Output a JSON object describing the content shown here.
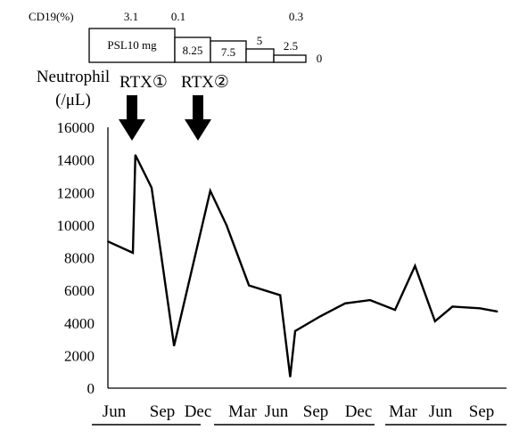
{
  "chart_data": {
    "type": "line",
    "title": "",
    "ylabel_line1": "Neutrophil",
    "ylabel_line2": "(/μL)",
    "ylim": [
      0,
      16000
    ],
    "yticks": [
      0,
      2000,
      4000,
      6000,
      8000,
      10000,
      12000,
      14000,
      16000
    ],
    "xticks": [
      "Jun",
      "Sep",
      "Dec",
      "Mar",
      "Jun",
      "Sep",
      "Dec",
      "Mar",
      "Jun",
      "Sep"
    ],
    "grid": false,
    "series": [
      {
        "points": [
          {
            "x": 0.0,
            "y": 9000
          },
          {
            "x": 2.0,
            "y": 8300
          },
          {
            "x": 2.2,
            "y": 14300
          },
          {
            "x": 3.5,
            "y": 12300
          },
          {
            "x": 5.3,
            "y": 2600
          },
          {
            "x": 8.2,
            "y": 12100
          },
          {
            "x": 9.5,
            "y": 10000
          },
          {
            "x": 11.3,
            "y": 6300
          },
          {
            "x": 13.8,
            "y": 5700
          },
          {
            "x": 14.6,
            "y": 700
          },
          {
            "x": 15.0,
            "y": 3500
          },
          {
            "x": 17.0,
            "y": 4400
          },
          {
            "x": 19.0,
            "y": 5200
          },
          {
            "x": 21.0,
            "y": 5400
          },
          {
            "x": 23.0,
            "y": 4800
          },
          {
            "x": 24.6,
            "y": 7500
          },
          {
            "x": 26.2,
            "y": 4100
          },
          {
            "x": 27.6,
            "y": 5000
          },
          {
            "x": 29.8,
            "y": 4900
          },
          {
            "x": 31.2,
            "y": 4700
          }
        ]
      }
    ],
    "annotations": {
      "cd19_label": "CD19(%)",
      "cd19_values": [
        "3.1",
        "0.1",
        "0.3"
      ],
      "psl_steps": [
        "PSL10 mg",
        "8.25",
        "7.5",
        "5",
        "2.5",
        "0"
      ],
      "rtx_events": [
        {
          "label": "RTX①",
          "x": 2.2
        },
        {
          "label": "RTX②",
          "x": 6.6
        }
      ]
    }
  }
}
